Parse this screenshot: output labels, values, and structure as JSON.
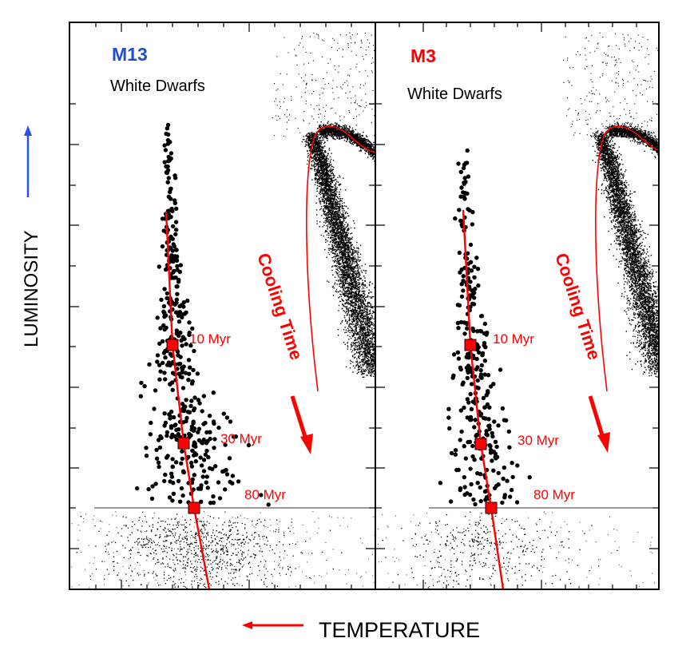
{
  "chart_data": [
    {
      "type": "scatter",
      "panel": "left",
      "title": "M13",
      "title_color": "#1f4fc9",
      "subtitle": "White Dwarfs",
      "annotation": "Cooling Time",
      "ages": [
        {
          "label": "10 Myr",
          "age_myr": 10
        },
        {
          "label": "30 Myr",
          "age_myr": 30
        },
        {
          "label": "80 Myr",
          "age_myr": 80
        }
      ],
      "seed": 13
    },
    {
      "type": "scatter",
      "panel": "right",
      "title": "M3",
      "title_color": "#ff0000",
      "subtitle": "White Dwarfs",
      "annotation": "Cooling Time",
      "ages": [
        {
          "label": "10 Myr",
          "age_myr": 10
        },
        {
          "label": "30 Myr",
          "age_myr": 30
        },
        {
          "label": "80 Myr",
          "age_myr": 80
        }
      ],
      "seed": 3
    }
  ],
  "axes": {
    "ylabel": "LUMINOSITY",
    "xlabel": "TEMPERATURE",
    "ylabel_arrow_color": "#2a4ff0",
    "xlabel_arrow_color": "#ff0000",
    "grid": false
  },
  "colors": {
    "track": "#ff0000",
    "stars": "#000000",
    "annotation": "#ff0000"
  }
}
